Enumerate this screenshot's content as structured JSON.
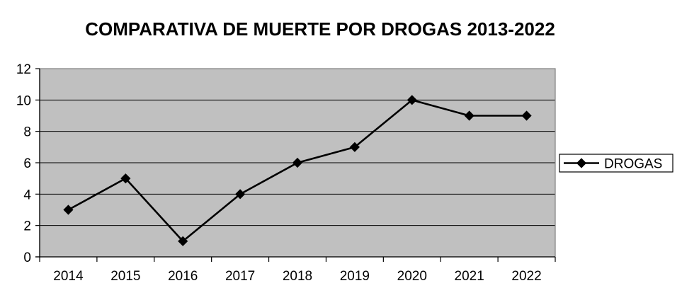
{
  "chart_data": {
    "type": "line",
    "title": "COMPARATIVA DE MUERTE POR DROGAS 2013-2022",
    "xlabel": "",
    "ylabel": "",
    "categories": [
      "2014",
      "2015",
      "2016",
      "2017",
      "2018",
      "2019",
      "2020",
      "2021",
      "2022"
    ],
    "series": [
      {
        "name": "DROGAS",
        "values": [
          3,
          5,
          1,
          4,
          6,
          7,
          10,
          9,
          9
        ]
      }
    ],
    "ylim": [
      0,
      12
    ],
    "yticks": [
      0,
      2,
      4,
      6,
      8,
      10,
      12
    ],
    "grid": true,
    "legend_position": "right",
    "plot_background": "#c0c0c0",
    "line_color": "#000000"
  }
}
